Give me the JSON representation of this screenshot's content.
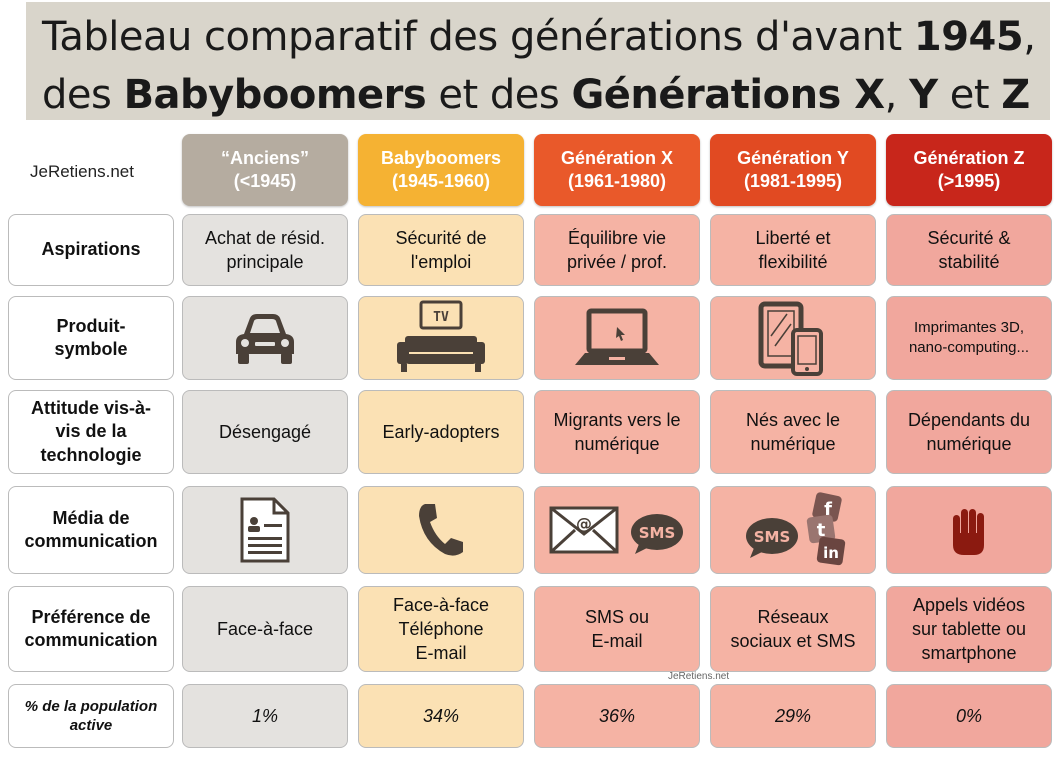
{
  "title": {
    "line1_prefix": "Tableau comparatif des générations d'avant ",
    "line1_bold": "1945",
    "line1_suffix": ",",
    "line2_a": "des ",
    "line2_b": "Babyboomers",
    "line2_c": " et des ",
    "line2_d": "Générations X",
    "line2_e": ", ",
    "line2_f": "Y",
    "line2_g": " et ",
    "line2_h": "Z"
  },
  "brand": "JeRetiens.net",
  "watermark": "JeRetiens.net",
  "columns": [
    {
      "name": "“Anciens”",
      "years": "(<1945)",
      "color": "#b5aca0"
    },
    {
      "name": "Babyboomers",
      "years": "(1945-1960)",
      "color": "#f5b233"
    },
    {
      "name": "Génération X",
      "years": "(1961-1980)",
      "color": "#e9592a"
    },
    {
      "name": "Génération Y",
      "years": "(1981-1995)",
      "color": "#e14a22"
    },
    {
      "name": "Génération Z",
      "years": "(>1995)",
      "color": "#c8261b"
    }
  ],
  "rows": {
    "aspirations": {
      "label": "Aspirations",
      "cells": [
        [
          "Achat de résid.",
          "principale"
        ],
        [
          "Sécurité de",
          "l'emploi"
        ],
        [
          "Équilibre vie",
          "privée / prof."
        ],
        [
          "Liberté et",
          "flexibilité"
        ],
        [
          "Sécurité &",
          "stabilité"
        ]
      ]
    },
    "produit": {
      "label": [
        "Produit-",
        "symbole"
      ],
      "icons": [
        "car-icon",
        "tv-sofa-icon",
        "laptop-icon",
        "tablet-phone-icon"
      ],
      "tv_text": "TV",
      "gen_z_text": [
        "Imprimantes 3D,",
        "nano-computing..."
      ]
    },
    "attitude": {
      "label": [
        "Attitude vis-à-",
        "vis de la",
        "technologie"
      ],
      "cells": [
        [
          "Désengagé"
        ],
        [
          "Early-adopters"
        ],
        [
          "Migrants vers le",
          "numérique"
        ],
        [
          "Nés avec le",
          "numérique"
        ],
        [
          "Dépendants du",
          "numérique"
        ]
      ]
    },
    "media": {
      "label": [
        "Média de",
        "communication"
      ],
      "icons": [
        "document-icon",
        "phone-icon",
        "email-sms-icon",
        "sms-social-icon",
        "hand-icon"
      ],
      "email_symbol": "@",
      "sms_text": "SMS",
      "social_f": "f",
      "social_t": "t",
      "social_in": "in"
    },
    "preference": {
      "label": [
        "Préférence de",
        "communication"
      ],
      "cells": [
        [
          "Face-à-face"
        ],
        [
          "Face-à-face",
          "Téléphone",
          "E-mail"
        ],
        [
          "SMS ou",
          "E-mail"
        ],
        [
          "Réseaux",
          "sociaux et SMS"
        ],
        [
          "Appels vidéos",
          "sur tablette ou",
          "smartphone"
        ]
      ]
    },
    "population": {
      "label": [
        "% de la population",
        "active"
      ],
      "cells": [
        "1%",
        "34%",
        "36%",
        "29%",
        "0%"
      ]
    }
  },
  "colors": {
    "anciens_bg": "#e4e2df",
    "babyboomers_bg": "#fbe1b4",
    "gen_bg": "#f5b3a4",
    "icon_dark": "#4a4038",
    "gen_z_hand": "#8b1a10"
  }
}
